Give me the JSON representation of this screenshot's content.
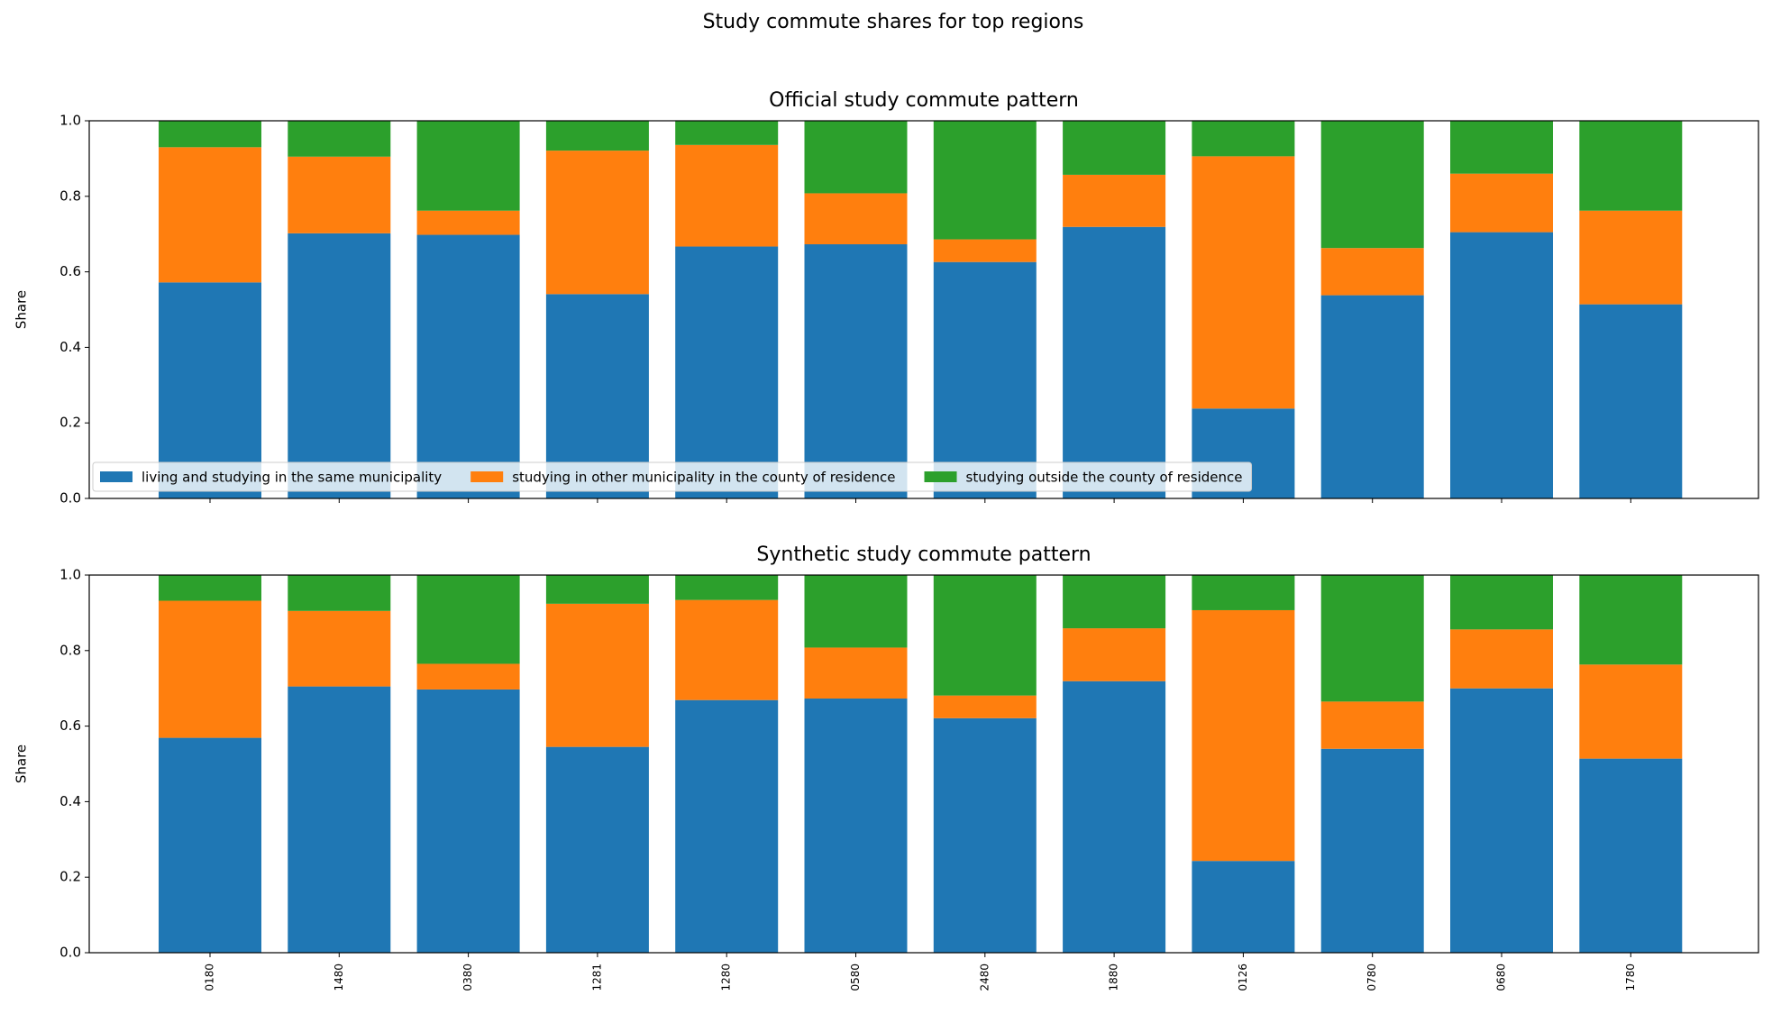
{
  "title": "Study commute shares for top regions",
  "chart_data": [
    {
      "type": "stacked_bar",
      "title": "Official study commute pattern",
      "y_label": "Share",
      "legend": "lower left",
      "series": [
        {
          "name": "living and studying in the same municipality",
          "color": "#1f77b4",
          "values": [
            0.572,
            0.702,
            0.698,
            0.541,
            0.667,
            0.673,
            0.626,
            0.719,
            0.238,
            0.538,
            0.705,
            0.514
          ]
        },
        {
          "name": "studying in other municipality in the county of residence",
          "color": "#ff7f0e",
          "values": [
            0.358,
            0.203,
            0.064,
            0.38,
            0.269,
            0.135,
            0.06,
            0.138,
            0.668,
            0.125,
            0.155,
            0.248
          ]
        },
        {
          "name": "studying outside the county of residence",
          "color": "#2ca02c",
          "values": [
            0.07,
            0.095,
            0.238,
            0.079,
            0.064,
            0.192,
            0.314,
            0.143,
            0.094,
            0.337,
            0.14,
            0.238
          ]
        }
      ],
      "ylim": [
        0,
        1
      ],
      "yticks": [
        {
          "value": 0,
          "label": "0.0"
        },
        0.2,
        0.4,
        0.6,
        0.8,
        {
          "value": 1,
          "label": "1.0"
        }
      ]
    },
    {
      "type": "stacked_bar",
      "title": "Synthetic study commute pattern",
      "y_label": "Share",
      "categories": [
        "0180",
        "1480",
        "0380",
        "1281",
        "1280",
        "0580",
        "2480",
        "1880",
        "0126",
        "0780",
        "0680",
        "1780"
      ],
      "series": [
        {
          "color": "#1f77b4",
          "values": [
            0.569,
            0.705,
            0.697,
            0.545,
            0.669,
            0.673,
            0.621,
            0.719,
            0.243,
            0.54,
            0.7,
            0.514
          ]
        },
        {
          "color": "#ff7f0e",
          "values": [
            0.363,
            0.2,
            0.068,
            0.379,
            0.265,
            0.135,
            0.06,
            0.14,
            0.664,
            0.125,
            0.156,
            0.249
          ]
        },
        {
          "color": "#2ca02c",
          "values": [
            0.068,
            0.095,
            0.235,
            0.076,
            0.066,
            0.192,
            0.319,
            0.141,
            0.093,
            0.335,
            0.144,
            0.237
          ]
        }
      ],
      "ylim": [
        0,
        1
      ],
      "yticks": [
        {
          "value": 0,
          "label": "0.0"
        },
        0.2,
        0.4,
        0.6,
        0.8,
        {
          "value": 1,
          "label": "1.0"
        }
      ]
    }
  ]
}
